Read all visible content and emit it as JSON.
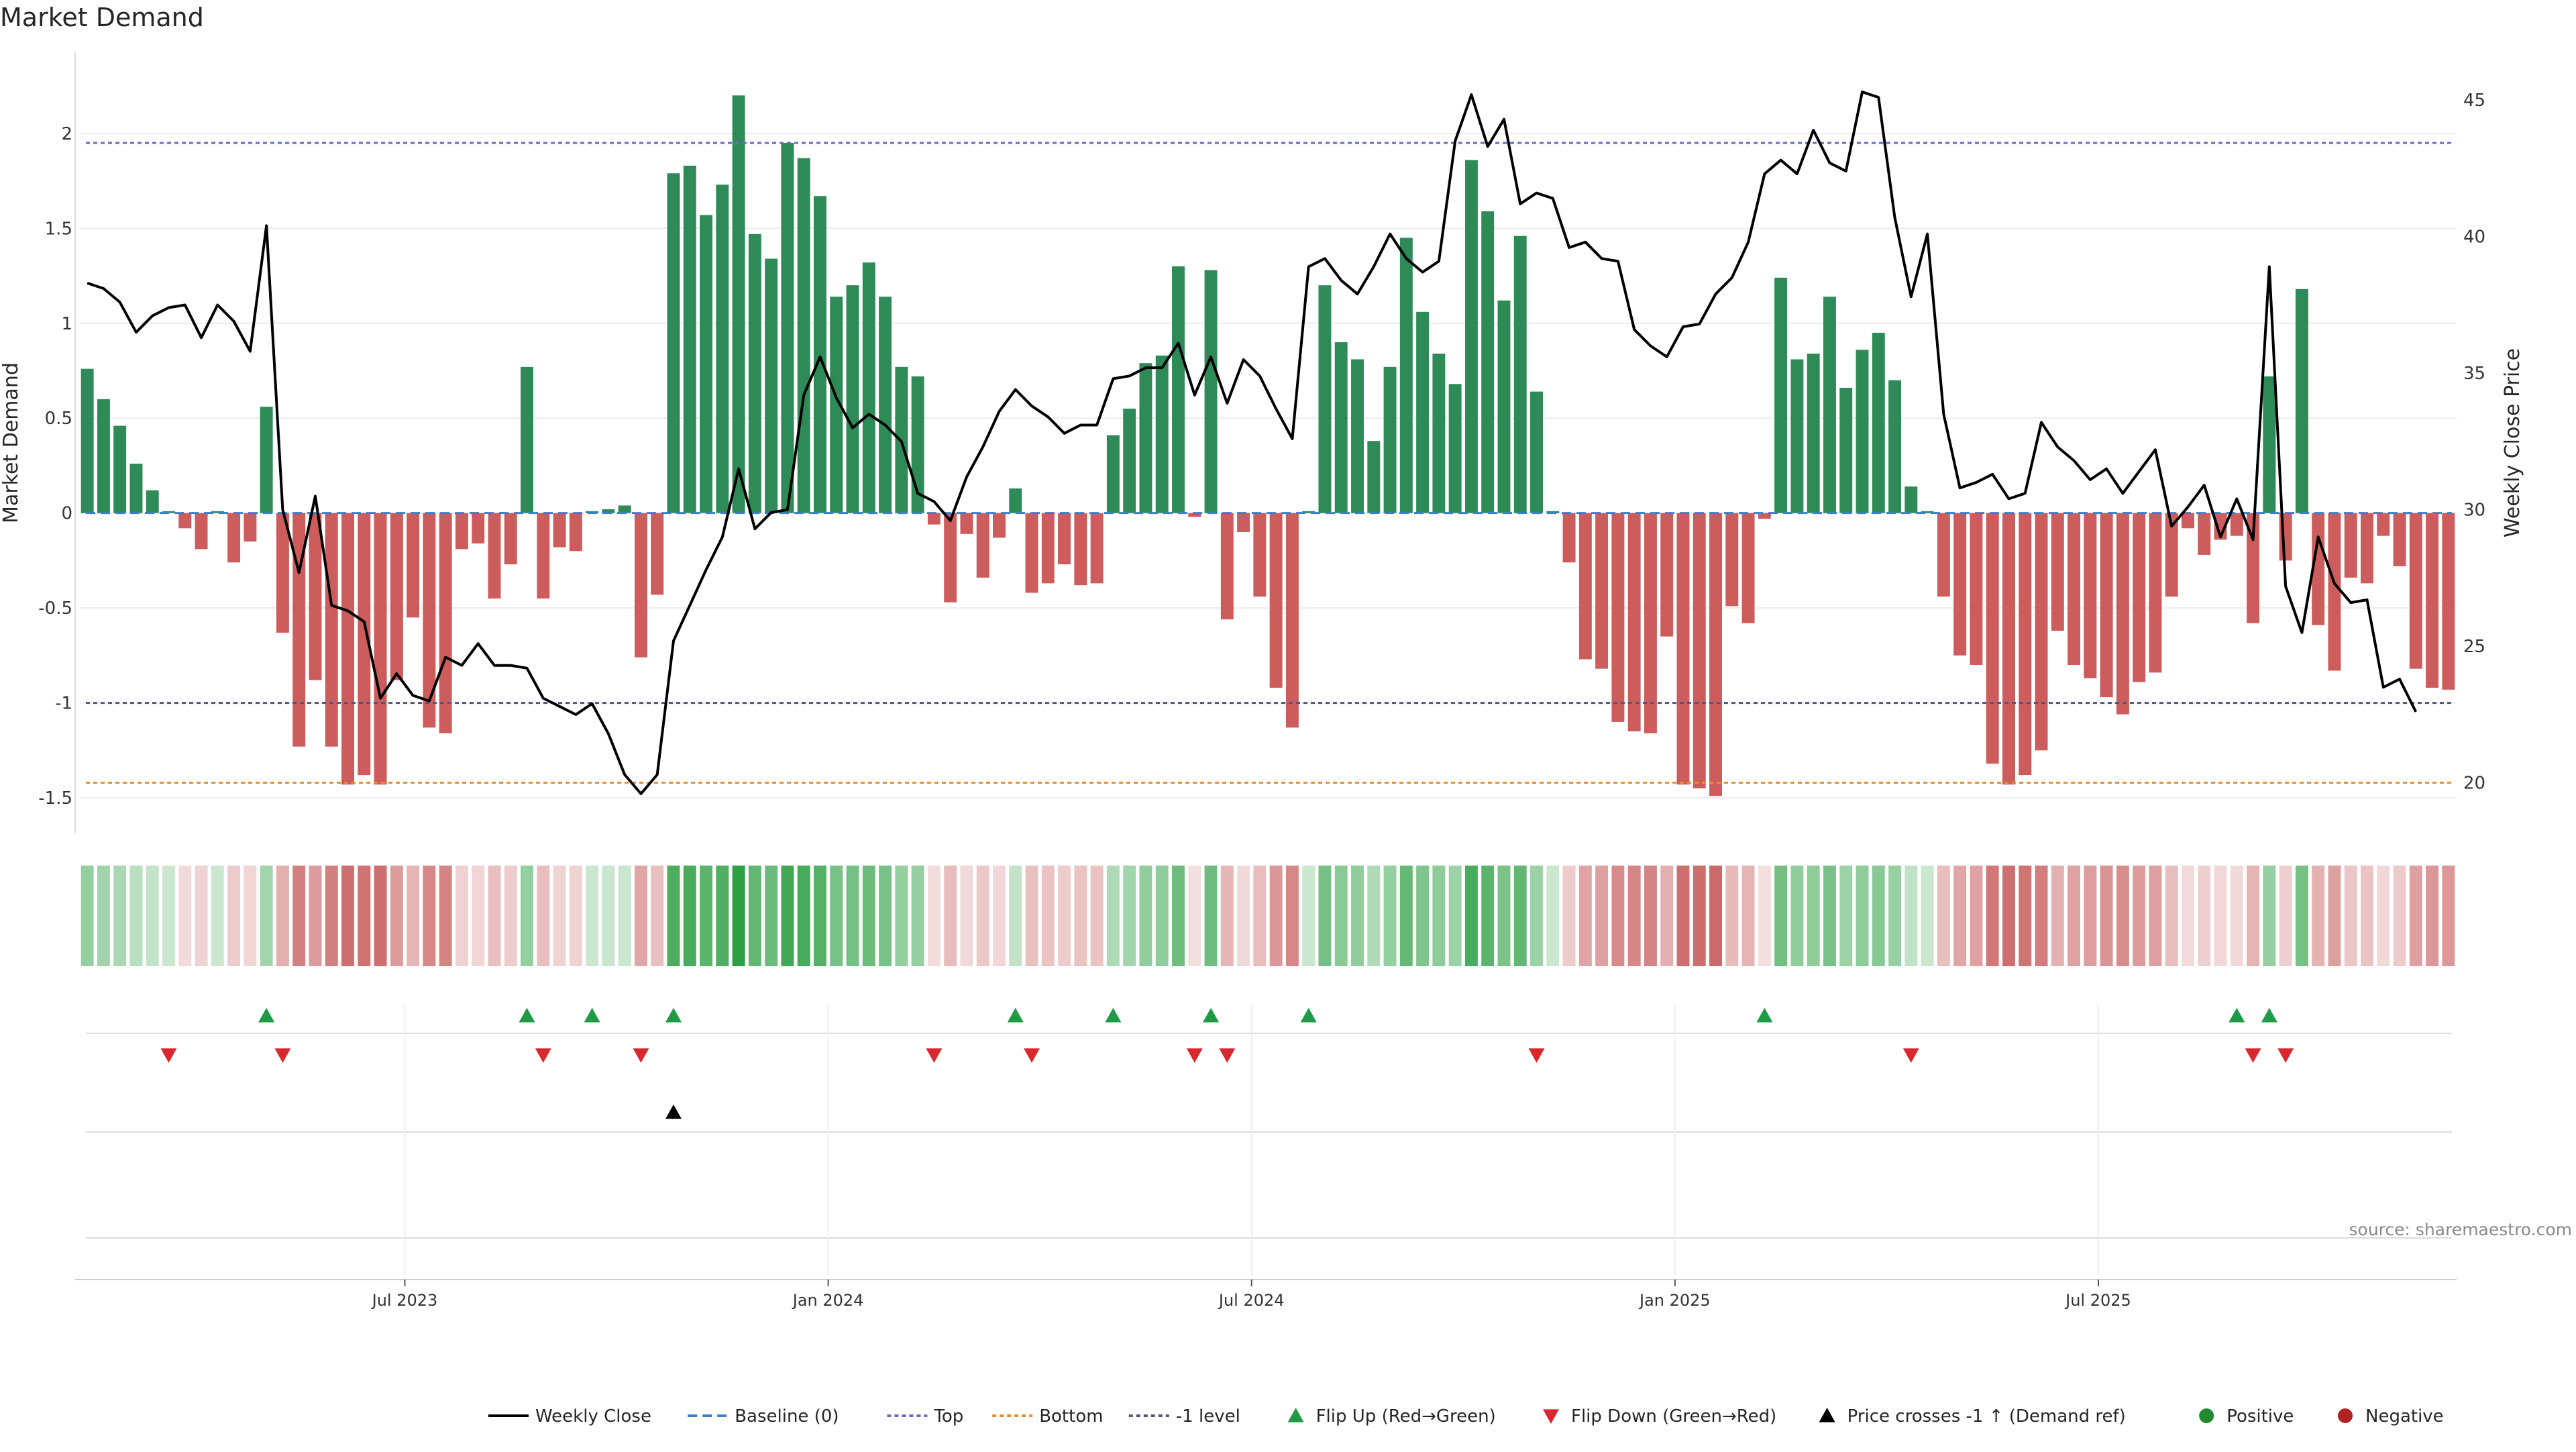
{
  "title": "Market Demand",
  "source": "source: sharemaestro.com",
  "colors": {
    "positive": "#2e8b57",
    "negative": "#cd5c5c",
    "top": "#6a6abf",
    "bottom": "#e3902c",
    "minus_one": "#555577",
    "baseline": "#3b7fc4",
    "flip_up": "#1f9a45",
    "flip_down": "#d9272e",
    "cross": "#000000",
    "pos_dot": "#1f8a2f",
    "neg_dot": "#b22222"
  },
  "chart_data": {
    "type": "bar",
    "title": "Market Demand",
    "ylabel": "Market Demand",
    "y2label": "Weekly Close Price",
    "ylim": [
      -1.68,
      2.42
    ],
    "y2lim": [
      18.2,
      46.7
    ],
    "yticks": [
      "-1.5",
      "-1",
      "-0.5",
      "0",
      "0.5",
      "1",
      "1.5",
      "2"
    ],
    "y2ticks": [
      "20",
      "25",
      "30",
      "35",
      "40",
      "45"
    ],
    "x_tick_labels": [
      "Jul 2023",
      "Jan 2024",
      "Jul 2024",
      "Jan 2025",
      "Jul 2025"
    ],
    "x_tick_weeks": [
      20,
      46,
      72,
      98,
      124
    ],
    "levels": {
      "top": 1.95,
      "bottom": -1.42,
      "minus_one": -1.0,
      "baseline": 0
    },
    "demand": [
      0.76,
      0.6,
      0.46,
      0.26,
      0.12,
      0.01,
      -0.08,
      -0.19,
      0.01,
      -0.26,
      -0.15,
      0.56,
      -0.63,
      -1.23,
      -0.88,
      -1.23,
      -1.43,
      -1.38,
      -1.43,
      -0.88,
      -0.55,
      -1.13,
      -1.16,
      -0.19,
      -0.16,
      -0.45,
      -0.27,
      0.77,
      -0.45,
      -0.18,
      -0.2,
      0.01,
      0.02,
      0.04,
      -0.76,
      -0.43,
      1.79,
      1.83,
      1.57,
      1.73,
      2.2,
      1.47,
      1.34,
      1.95,
      1.87,
      1.67,
      1.14,
      1.2,
      1.32,
      1.14,
      0.77,
      0.72,
      -0.06,
      -0.47,
      -0.11,
      -0.34,
      -0.13,
      0.13,
      -0.42,
      -0.37,
      -0.27,
      -0.38,
      -0.37,
      0.41,
      0.55,
      0.79,
      0.83,
      1.3,
      -0.02,
      1.28,
      -0.56,
      -0.1,
      -0.44,
      -0.92,
      -1.13,
      0.01,
      1.2,
      0.9,
      0.81,
      0.38,
      0.77,
      1.45,
      1.06,
      0.84,
      0.68,
      1.86,
      1.59,
      1.12,
      1.46,
      0.64,
      0.01,
      -0.26,
      -0.77,
      -0.82,
      -1.1,
      -1.15,
      -1.16,
      -0.65,
      -1.43,
      -1.45,
      -1.49,
      -0.49,
      -0.58,
      -0.03,
      1.24,
      0.81,
      0.84,
      1.14,
      0.66,
      0.86,
      0.95,
      0.7,
      0.14,
      0.01,
      -0.44,
      -0.75,
      -0.8,
      -1.32,
      -1.43,
      -1.38,
      -1.25,
      -0.62,
      -0.8,
      -0.87,
      -0.97,
      -1.06,
      -0.89,
      -0.84,
      -0.44,
      -0.08,
      -0.22,
      -0.14,
      -0.12,
      -0.58,
      0.72,
      -0.25,
      1.18,
      -0.59,
      -0.83,
      -0.34,
      -0.37,
      -0.12,
      -0.28,
      -0.82,
      -0.92,
      -0.93
    ],
    "price": [
      38.3,
      38.1,
      37.6,
      36.5,
      37.1,
      37.4,
      37.5,
      36.3,
      37.5,
      36.9,
      35.8,
      40.4,
      30,
      27.7,
      30.5,
      26.5,
      26.3,
      25.9,
      23.1,
      24,
      23.2,
      23,
      24.6,
      24.3,
      25.1,
      24.3,
      24.3,
      24.2,
      23.1,
      22.8,
      22.5,
      22.9,
      21.8,
      20.3,
      19.6,
      20.3,
      25.2,
      26.5,
      27.8,
      29,
      31.5,
      29.3,
      29.9,
      30,
      34.2,
      35.6,
      34.1,
      33,
      33.5,
      33.1,
      32.5,
      30.6,
      30.3,
      29.6,
      31.2,
      32.3,
      33.6,
      34.4,
      33.8,
      33.4,
      32.8,
      33.1,
      33.1,
      34.8,
      34.9,
      35.2,
      35.2,
      36.1,
      34.2,
      35.6,
      33.9,
      35.5,
      34.9,
      33.7,
      32.6,
      38.9,
      39.2,
      38.4,
      37.9,
      38.9,
      40.1,
      39.2,
      38.7,
      39.1,
      43.5,
      45.2,
      43.3,
      44.3,
      41.2,
      41.6,
      41.4,
      39.6,
      39.8,
      39.2,
      39.1,
      36.6,
      36,
      35.6,
      36.7,
      36.8,
      37.9,
      38.5,
      39.8,
      42.3,
      42.8,
      42.3,
      43.9,
      42.7,
      42.4,
      45.3,
      45.1,
      40.7,
      37.8,
      40.1,
      33.5,
      30.8,
      31,
      31.3,
      30.4,
      30.6,
      33.2,
      32.3,
      31.8,
      31.1,
      31.5,
      30.6,
      31.4,
      32.2,
      29.4,
      30.1,
      30.9,
      29,
      30.4,
      28.9,
      38.9,
      27.2,
      25.5,
      29,
      27.3,
      26.6,
      26.7,
      23.5,
      23.8,
      22.6
    ],
    "flip_up_weeks": [
      11,
      27,
      31,
      36,
      57,
      63,
      69,
      75,
      103,
      132,
      134
    ],
    "flip_down_weeks": [
      5,
      12,
      28,
      34,
      52,
      58,
      68,
      70,
      89,
      112,
      133,
      135
    ],
    "cross_weeks": [
      36
    ],
    "legend": [
      "Weekly Close",
      "Baseline (0)",
      "Top",
      "Bottom",
      "-1 level",
      "Flip Up (Red→Green)",
      "Flip Down (Green→Red)",
      "Price crosses -1 ↑ (Demand ref)",
      "Positive",
      "Negative"
    ]
  }
}
